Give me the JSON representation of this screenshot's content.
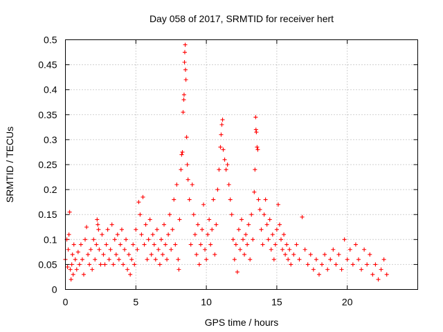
{
  "chart_data": {
    "type": "scatter",
    "title": "Day 058 of 2017, SRMTID for receiver hert",
    "xlabel": "GPS time / hours",
    "ylabel": "SRMTID / TECUs",
    "xlim": [
      0,
      25
    ],
    "ylim": [
      0,
      0.5
    ],
    "x_ticks": [
      0,
      5,
      10,
      15,
      20
    ],
    "y_ticks": [
      0,
      0.05,
      0.1,
      0.15,
      0.2,
      0.25,
      0.3,
      0.35,
      0.4,
      0.45,
      0.5
    ],
    "x_tick_labels": [
      "0",
      "5",
      "10",
      "15",
      "20"
    ],
    "y_tick_labels": [
      "0",
      "0.05",
      "0.1",
      "0.15",
      "0.2",
      "0.25",
      "0.3",
      "0.35",
      "0.4",
      "0.45",
      "0.5"
    ],
    "grid": true,
    "marker": "+",
    "marker_color": "#ff0000",
    "series": [
      {
        "points": [
          [
            0.0,
            0.06
          ],
          [
            0.1,
            0.1
          ],
          [
            0.15,
            0.045
          ],
          [
            0.2,
            0.08
          ],
          [
            0.25,
            0.11
          ],
          [
            0.3,
            0.155
          ],
          [
            0.35,
            0.04
          ],
          [
            0.4,
            0.02
          ],
          [
            0.45,
            0.05
          ],
          [
            0.5,
            0.07
          ],
          [
            0.55,
            0.03
          ],
          [
            0.6,
            0.09
          ],
          [
            0.7,
            0.06
          ],
          [
            0.8,
            0.04
          ],
          [
            0.9,
            0.075
          ],
          [
            1.0,
            0.05
          ],
          [
            1.1,
            0.09
          ],
          [
            1.2,
            0.06
          ],
          [
            1.3,
            0.03
          ],
          [
            1.4,
            0.1
          ],
          [
            1.5,
            0.125
          ],
          [
            1.6,
            0.07
          ],
          [
            1.7,
            0.05
          ],
          [
            1.8,
            0.08
          ],
          [
            1.9,
            0.04
          ],
          [
            2.0,
            0.1
          ],
          [
            2.1,
            0.06
          ],
          [
            2.2,
            0.09
          ],
          [
            2.25,
            0.14
          ],
          [
            2.3,
            0.13
          ],
          [
            2.35,
            0.12
          ],
          [
            2.4,
            0.08
          ],
          [
            2.5,
            0.05
          ],
          [
            2.6,
            0.11
          ],
          [
            2.7,
            0.07
          ],
          [
            2.8,
            0.05
          ],
          [
            2.9,
            0.09
          ],
          [
            3.0,
            0.12
          ],
          [
            3.1,
            0.06
          ],
          [
            3.2,
            0.08
          ],
          [
            3.3,
            0.13
          ],
          [
            3.4,
            0.05
          ],
          [
            3.5,
            0.1
          ],
          [
            3.6,
            0.07
          ],
          [
            3.7,
            0.11
          ],
          [
            3.8,
            0.06
          ],
          [
            3.9,
            0.09
          ],
          [
            4.0,
            0.12
          ],
          [
            4.1,
            0.05
          ],
          [
            4.2,
            0.08
          ],
          [
            4.3,
            0.1
          ],
          [
            4.4,
            0.04
          ],
          [
            4.5,
            0.07
          ],
          [
            4.6,
            0.03
          ],
          [
            4.7,
            0.06
          ],
          [
            4.8,
            0.09
          ],
          [
            4.9,
            0.05
          ],
          [
            5.0,
            0.12
          ],
          [
            5.1,
            0.08
          ],
          [
            5.2,
            0.175
          ],
          [
            5.3,
            0.15
          ],
          [
            5.4,
            0.11
          ],
          [
            5.5,
            0.185
          ],
          [
            5.6,
            0.09
          ],
          [
            5.7,
            0.13
          ],
          [
            5.8,
            0.06
          ],
          [
            5.9,
            0.1
          ],
          [
            6.0,
            0.14
          ],
          [
            6.1,
            0.07
          ],
          [
            6.2,
            0.11
          ],
          [
            6.3,
            0.09
          ],
          [
            6.4,
            0.06
          ],
          [
            6.5,
            0.12
          ],
          [
            6.6,
            0.08
          ],
          [
            6.7,
            0.05
          ],
          [
            6.8,
            0.1
          ],
          [
            6.9,
            0.07
          ],
          [
            7.0,
            0.13
          ],
          [
            7.1,
            0.09
          ],
          [
            7.2,
            0.06
          ],
          [
            7.3,
            0.11
          ],
          [
            7.4,
            0.15
          ],
          [
            7.5,
            0.08
          ],
          [
            7.6,
            0.12
          ],
          [
            7.7,
            0.18
          ],
          [
            7.8,
            0.09
          ],
          [
            7.9,
            0.21
          ],
          [
            8.0,
            0.06
          ],
          [
            8.05,
            0.04
          ],
          [
            8.1,
            0.14
          ],
          [
            8.2,
            0.24
          ],
          [
            8.25,
            0.27
          ],
          [
            8.3,
            0.275
          ],
          [
            8.35,
            0.355
          ],
          [
            8.4,
            0.38
          ],
          [
            8.42,
            0.39
          ],
          [
            8.45,
            0.455
          ],
          [
            8.47,
            0.475
          ],
          [
            8.5,
            0.49
          ],
          [
            8.52,
            0.44
          ],
          [
            8.55,
            0.42
          ],
          [
            8.6,
            0.305
          ],
          [
            8.65,
            0.25
          ],
          [
            8.7,
            0.22
          ],
          [
            8.8,
            0.18
          ],
          [
            8.9,
            0.09
          ],
          [
            9.0,
            0.21
          ],
          [
            9.1,
            0.15
          ],
          [
            9.2,
            0.11
          ],
          [
            9.3,
            0.07
          ],
          [
            9.4,
            0.13
          ],
          [
            9.5,
            0.05
          ],
          [
            9.6,
            0.09
          ],
          [
            9.7,
            0.12
          ],
          [
            9.8,
            0.17
          ],
          [
            9.9,
            0.08
          ],
          [
            10.0,
            0.06
          ],
          [
            10.1,
            0.11
          ],
          [
            10.2,
            0.14
          ],
          [
            10.3,
            0.09
          ],
          [
            10.4,
            0.12
          ],
          [
            10.5,
            0.18
          ],
          [
            10.6,
            0.07
          ],
          [
            10.7,
            0.13
          ],
          [
            10.8,
            0.2
          ],
          [
            10.9,
            0.24
          ],
          [
            11.0,
            0.285
          ],
          [
            11.05,
            0.31
          ],
          [
            11.1,
            0.33
          ],
          [
            11.15,
            0.34
          ],
          [
            11.2,
            0.28
          ],
          [
            11.3,
            0.26
          ],
          [
            11.4,
            0.24
          ],
          [
            11.5,
            0.25
          ],
          [
            11.6,
            0.21
          ],
          [
            11.7,
            0.18
          ],
          [
            11.8,
            0.15
          ],
          [
            11.9,
            0.1
          ],
          [
            12.0,
            0.06
          ],
          [
            12.1,
            0.09
          ],
          [
            12.2,
            0.035
          ],
          [
            12.3,
            0.12
          ],
          [
            12.4,
            0.08
          ],
          [
            12.5,
            0.14
          ],
          [
            12.6,
            0.1
          ],
          [
            12.7,
            0.07
          ],
          [
            12.8,
            0.11
          ],
          [
            12.9,
            0.09
          ],
          [
            13.0,
            0.13
          ],
          [
            13.1,
            0.06
          ],
          [
            13.2,
            0.15
          ],
          [
            13.3,
            0.1
          ],
          [
            13.4,
            0.195
          ],
          [
            13.45,
            0.24
          ],
          [
            13.5,
            0.345
          ],
          [
            13.52,
            0.32
          ],
          [
            13.55,
            0.315
          ],
          [
            13.6,
            0.285
          ],
          [
            13.65,
            0.28
          ],
          [
            13.7,
            0.18
          ],
          [
            13.8,
            0.16
          ],
          [
            13.9,
            0.12
          ],
          [
            14.0,
            0.09
          ],
          [
            14.1,
            0.15
          ],
          [
            14.2,
            0.18
          ],
          [
            14.3,
            0.13
          ],
          [
            14.4,
            0.1
          ],
          [
            14.5,
            0.14
          ],
          [
            14.6,
            0.08
          ],
          [
            14.7,
            0.11
          ],
          [
            14.8,
            0.06
          ],
          [
            14.9,
            0.09
          ],
          [
            15.0,
            0.12
          ],
          [
            15.1,
            0.17
          ],
          [
            15.2,
            0.13
          ],
          [
            15.3,
            0.1
          ],
          [
            15.4,
            0.08
          ],
          [
            15.5,
            0.11
          ],
          [
            15.6,
            0.07
          ],
          [
            15.7,
            0.09
          ],
          [
            15.8,
            0.06
          ],
          [
            15.9,
            0.08
          ],
          [
            16.0,
            0.05
          ],
          [
            16.2,
            0.07
          ],
          [
            16.4,
            0.09
          ],
          [
            16.6,
            0.06
          ],
          [
            16.8,
            0.145
          ],
          [
            17.0,
            0.08
          ],
          [
            17.2,
            0.05
          ],
          [
            17.4,
            0.07
          ],
          [
            17.6,
            0.04
          ],
          [
            17.8,
            0.06
          ],
          [
            18.0,
            0.03
          ],
          [
            18.2,
            0.05
          ],
          [
            18.4,
            0.07
          ],
          [
            18.6,
            0.04
          ],
          [
            18.8,
            0.06
          ],
          [
            19.0,
            0.08
          ],
          [
            19.2,
            0.05
          ],
          [
            19.4,
            0.07
          ],
          [
            19.6,
            0.04
          ],
          [
            19.8,
            0.1
          ],
          [
            20.0,
            0.06
          ],
          [
            20.2,
            0.08
          ],
          [
            20.4,
            0.05
          ],
          [
            20.6,
            0.09
          ],
          [
            20.8,
            0.06
          ],
          [
            21.0,
            0.04
          ],
          [
            21.2,
            0.08
          ],
          [
            21.4,
            0.05
          ],
          [
            21.6,
            0.07
          ],
          [
            21.8,
            0.03
          ],
          [
            22.0,
            0.05
          ],
          [
            22.2,
            0.02
          ],
          [
            22.4,
            0.04
          ],
          [
            22.6,
            0.06
          ],
          [
            22.8,
            0.03
          ]
        ]
      }
    ]
  }
}
